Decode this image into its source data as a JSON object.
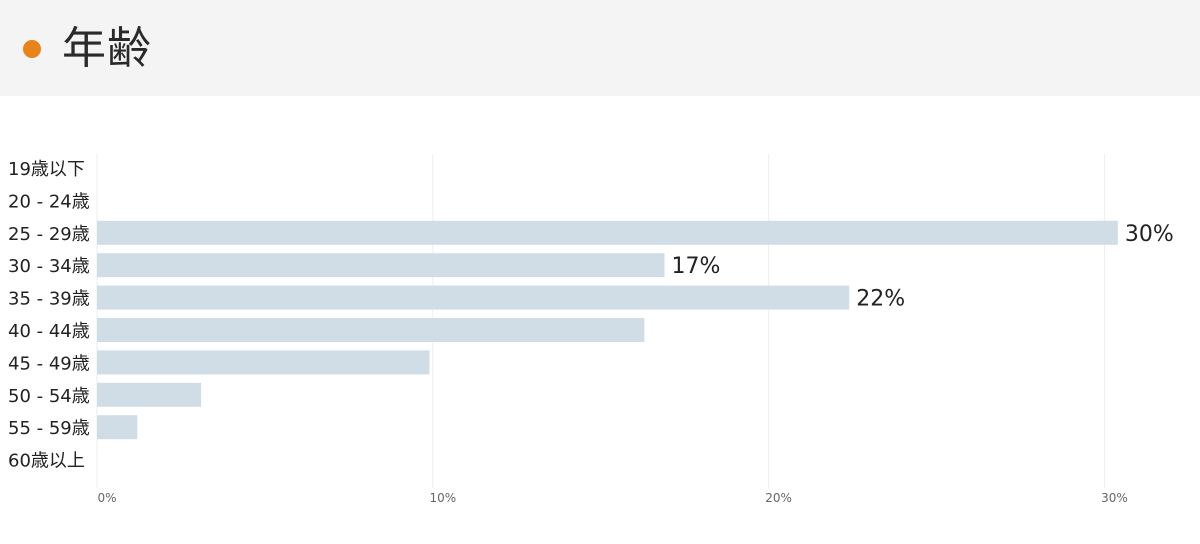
{
  "header": {
    "title": "年齢",
    "dot_color": "#e8821a"
  },
  "chart_data": {
    "type": "bar",
    "orientation": "horizontal",
    "title": "年齢",
    "categories": [
      "19歳以下",
      "20 - 24歳",
      "25 - 29歳",
      "30 - 34歳",
      "35 - 39歳",
      "40 - 44歳",
      "45 - 49歳",
      "50 - 54歳",
      "55 - 59歳",
      "60歳以上"
    ],
    "values": [
      0,
      0,
      30.4,
      16.9,
      22.4,
      16.3,
      9.9,
      3.1,
      1.2,
      0
    ],
    "data_labels": [
      "",
      "",
      "30%",
      "17%",
      "22%",
      "",
      "",
      "",
      "",
      ""
    ],
    "xlim": [
      0,
      31
    ],
    "x_ticks": [
      0,
      10,
      20,
      30
    ],
    "x_tick_labels": [
      "0%",
      "10%",
      "20%",
      "30%"
    ],
    "xlabel": "",
    "ylabel": "",
    "grid": true,
    "bar_color": "#d0dde7",
    "grid_color": "#eeeeee"
  }
}
